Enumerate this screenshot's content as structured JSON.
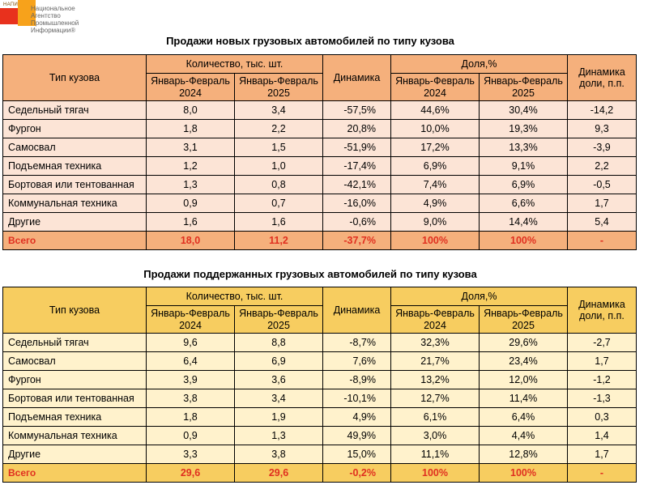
{
  "logo": {
    "abbr": "НАПИ",
    "name_lines": [
      "Национальное",
      "Агентство",
      "Промышленной",
      "Информации®"
    ]
  },
  "headers": {
    "type": "Тип кузова",
    "quantity": "Количество, тыс. шт.",
    "period1": "Январь-Февраль 2024",
    "period2": "Январь-Февраль 2025",
    "dynamics": "Динамика",
    "share": "Доля,%",
    "share_dynamics": "Динамика доли, п.п."
  },
  "table_new": {
    "title": "Продажи новых грузовых автомобилей по типу кузова",
    "rows": [
      {
        "type": "Седельный тягач",
        "q2024": "8,0",
        "q2025": "3,4",
        "dyn": "-57,5%",
        "s2024": "44,6%",
        "s2025": "30,4%",
        "sdyn": "-14,2"
      },
      {
        "type": "Фургон",
        "q2024": "1,8",
        "q2025": "2,2",
        "dyn": "20,8%",
        "s2024": "10,0%",
        "s2025": "19,3%",
        "sdyn": "9,3"
      },
      {
        "type": "Самосвал",
        "q2024": "3,1",
        "q2025": "1,5",
        "dyn": "-51,9%",
        "s2024": "17,2%",
        "s2025": "13,3%",
        "sdyn": "-3,9"
      },
      {
        "type": "Подъемная техника",
        "q2024": "1,2",
        "q2025": "1,0",
        "dyn": "-17,4%",
        "s2024": "6,9%",
        "s2025": "9,1%",
        "sdyn": "2,2"
      },
      {
        "type": "Бортовая или тентованная",
        "q2024": "1,3",
        "q2025": "0,8",
        "dyn": "-42,1%",
        "s2024": "7,4%",
        "s2025": "6,9%",
        "sdyn": "-0,5"
      },
      {
        "type": "Коммунальная техника",
        "q2024": "0,9",
        "q2025": "0,7",
        "dyn": "-16,0%",
        "s2024": "4,9%",
        "s2025": "6,6%",
        "sdyn": "1,7"
      },
      {
        "type": "Другие",
        "q2024": "1,6",
        "q2025": "1,6",
        "dyn": "-0,6%",
        "s2024": "9,0%",
        "s2025": "14,4%",
        "sdyn": "5,4"
      }
    ],
    "total": {
      "type": "Всего",
      "q2024": "18,0",
      "q2025": "11,2",
      "dyn": "-37,7%",
      "s2024": "100%",
      "s2025": "100%",
      "sdyn": "-"
    }
  },
  "table_used": {
    "title": "Продажи поддержанных грузовых автомобилей по типу кузова",
    "rows": [
      {
        "type": "Седельный тягач",
        "q2024": "9,6",
        "q2025": "8,8",
        "dyn": "-8,7%",
        "s2024": "32,3%",
        "s2025": "29,6%",
        "sdyn": "-2,7"
      },
      {
        "type": "Самосвал",
        "q2024": "6,4",
        "q2025": "6,9",
        "dyn": "7,6%",
        "s2024": "21,7%",
        "s2025": "23,4%",
        "sdyn": "1,7"
      },
      {
        "type": "Фургон",
        "q2024": "3,9",
        "q2025": "3,6",
        "dyn": "-8,9%",
        "s2024": "13,2%",
        "s2025": "12,0%",
        "sdyn": "-1,2"
      },
      {
        "type": "Бортовая или тентованная",
        "q2024": "3,8",
        "q2025": "3,4",
        "dyn": "-10,1%",
        "s2024": "12,7%",
        "s2025": "11,4%",
        "sdyn": "-1,3"
      },
      {
        "type": "Подъемная техника",
        "q2024": "1,8",
        "q2025": "1,9",
        "dyn": "4,9%",
        "s2024": "6,1%",
        "s2025": "6,4%",
        "sdyn": "0,3"
      },
      {
        "type": "Коммунальная техника",
        "q2024": "0,9",
        "q2025": "1,3",
        "dyn": "49,9%",
        "s2024": "3,0%",
        "s2025": "4,4%",
        "sdyn": "1,4"
      },
      {
        "type": "Другие",
        "q2024": "3,3",
        "q2025": "3,8",
        "dyn": "15,0%",
        "s2024": "11,1%",
        "s2025": "12,8%",
        "sdyn": "1,7"
      }
    ],
    "total": {
      "type": "Всего",
      "q2024": "29,6",
      "q2025": "29,6",
      "dyn": "-0,2%",
      "s2024": "100%",
      "s2025": "100%",
      "sdyn": "-"
    }
  },
  "colors": {
    "new_header": "#f5b07c",
    "new_body": "#fce4d6",
    "used_header": "#f7cd60",
    "used_body": "#fff2cc",
    "total_text": "#e03020"
  }
}
